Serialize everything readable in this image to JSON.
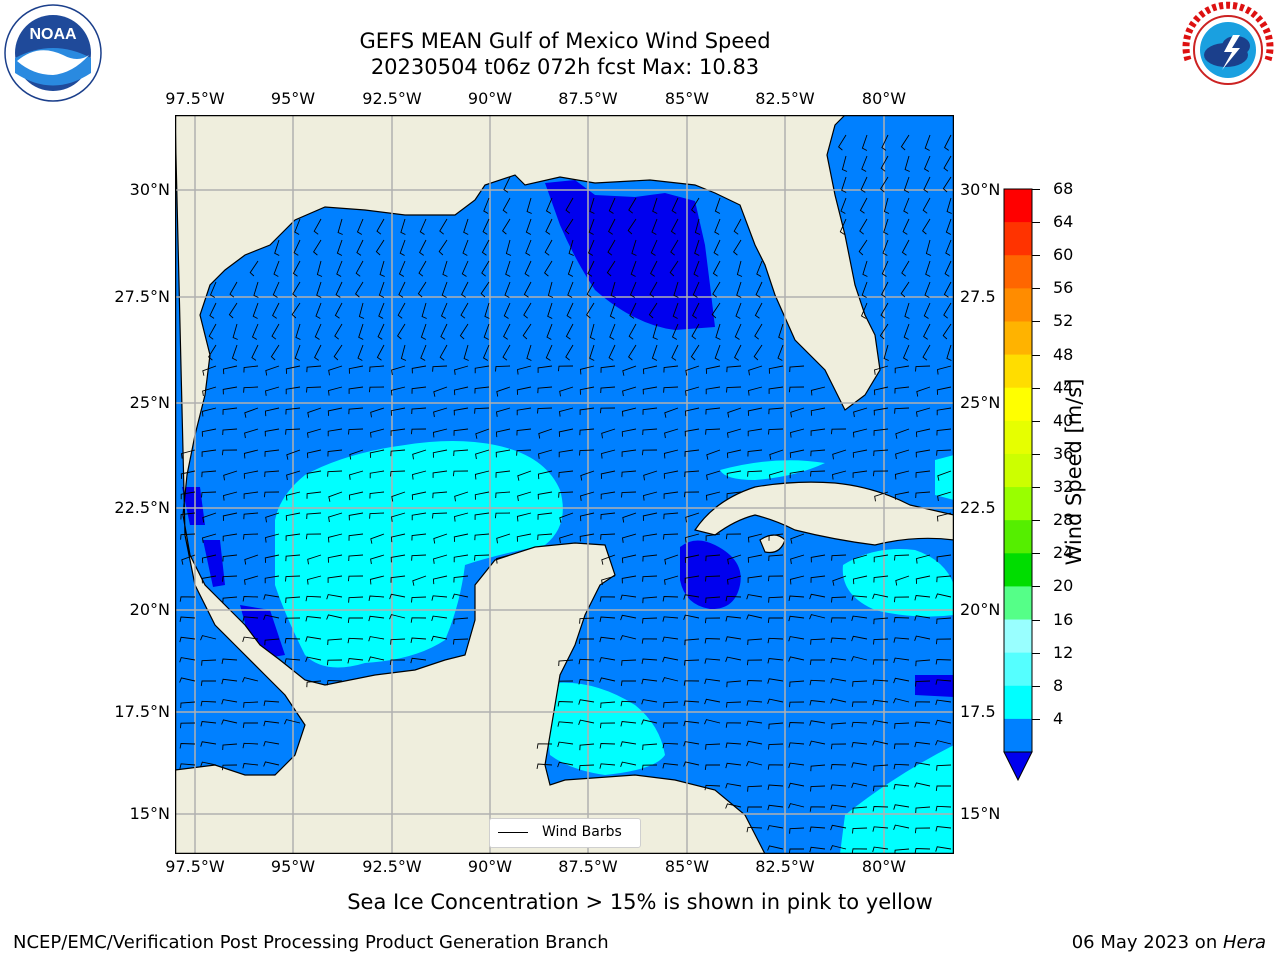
{
  "title": {
    "line1": "GEFS MEAN Gulf of Mexico Wind Speed",
    "line2": "20230504 t06z 072h fcst   Max: 10.83"
  },
  "logos": {
    "left": "NOAA",
    "left_ring": "NATIONAL OCEANIC AND ATMOSPHERIC ADMINISTRATION · U.S. DEPARTMENT OF COMMERCE",
    "right_ring": "NATIONAL WEATHER SERVICE"
  },
  "map": {
    "lon_labels": [
      "97.5°W",
      "95°W",
      "92.5°W",
      "90°W",
      "87.5°W",
      "85°W",
      "82.5°W",
      "80°W"
    ],
    "lat_labels_left": [
      "30°N",
      "27.5°N",
      "25°N",
      "22.5°N",
      "20°N",
      "17.5°N",
      "15°N"
    ],
    "lat_labels_right": [
      "30°N",
      "27.5",
      "25°N",
      "22.5",
      "20°N",
      "17.5",
      "15°N"
    ],
    "legend_label": "Wind Barbs",
    "colors": {
      "land": "#efeedd",
      "ws_4_8": "#0080ff",
      "ws_below_4": "#0000ee",
      "ws_8_12": "#00ffff",
      "grid": "#b0b0b0"
    }
  },
  "colorbar": {
    "label": "Wind Speed [m/s]",
    "ticks": [
      "68",
      "64",
      "60",
      "56",
      "52",
      "48",
      "44",
      "40",
      "36",
      "32",
      "28",
      "24",
      "20",
      "16",
      "12",
      "8",
      "4"
    ],
    "colors": [
      "#ff0000",
      "#ff3300",
      "#ff6600",
      "#ff8c00",
      "#ffb300",
      "#ffdd00",
      "#ffff00",
      "#e6ff00",
      "#ccff00",
      "#99ff00",
      "#55ee00",
      "#00dd00",
      "#55ff88",
      "#99ffff",
      "#55ffff",
      "#00ffff",
      "#0080ff"
    ],
    "under_color": "#0000ee"
  },
  "subtitle": "Sea Ice Concentration > 15% is shown in pink to yellow",
  "footer": {
    "left": "NCEP/EMC/Verification Post Processing Product Generation Branch",
    "right_date": "06 May 2023 on ",
    "right_host": "Hera"
  }
}
